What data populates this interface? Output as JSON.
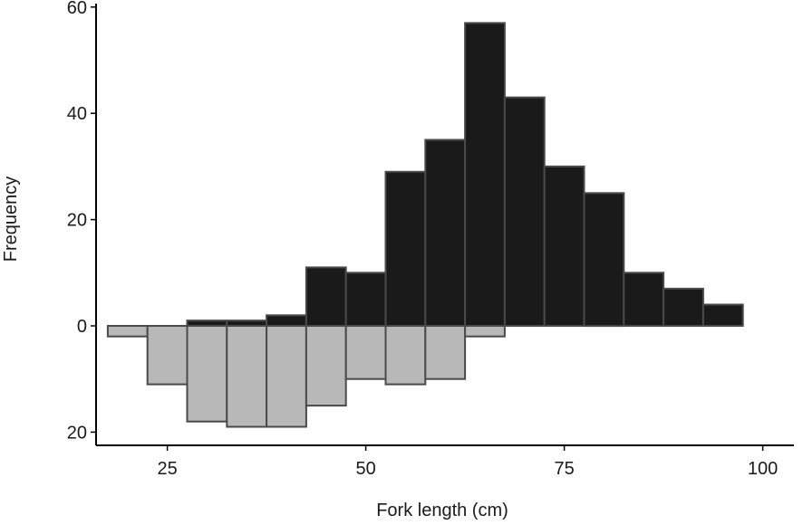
{
  "chart_data": {
    "type": "bar",
    "title": "",
    "xlabel": "Fork length (cm)",
    "ylabel": "Frequency",
    "xlim": [
      14.5,
      100.5
    ],
    "ylim": [
      -22,
      60
    ],
    "bin_width": 5,
    "x_ticks": [
      {
        "value": 25,
        "label": "25"
      },
      {
        "value": 50,
        "label": "50"
      },
      {
        "value": 75,
        "label": "75"
      },
      {
        "value": 100,
        "label": "100"
      }
    ],
    "y_ticks": [
      {
        "value": 60,
        "label": "60"
      },
      {
        "value": 40,
        "label": "40"
      },
      {
        "value": 20,
        "label": "20"
      },
      {
        "value": 0,
        "label": "0"
      },
      {
        "value": -20,
        "label": "20"
      }
    ],
    "grid": false,
    "legend": "none",
    "series": [
      {
        "color": "#1a1a1a",
        "direction": "up",
        "bin_centers": [
          30,
          35,
          40,
          45,
          50,
          55,
          60,
          65,
          70,
          75,
          80,
          85,
          90,
          95
        ],
        "values": [
          1,
          1,
          2,
          11,
          10,
          29,
          35,
          57,
          43,
          30,
          25,
          10,
          7,
          4
        ]
      },
      {
        "color": "#b8b8b8",
        "direction": "down",
        "bin_centers": [
          20,
          25,
          30,
          35,
          40,
          45,
          50,
          55,
          60,
          65
        ],
        "values": [
          2,
          11,
          18,
          19,
          19,
          15,
          10,
          11,
          10,
          2
        ]
      }
    ]
  }
}
